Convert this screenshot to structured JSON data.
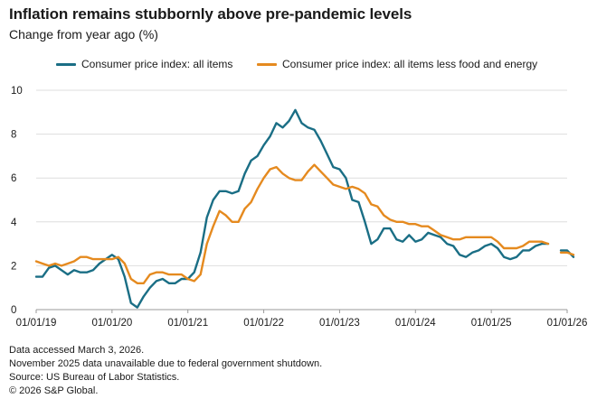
{
  "header": {
    "title": "Inflation remains stubbornly above pre-pandemic levels",
    "subtitle": "Change from year ago (%)"
  },
  "footer": {
    "lines": [
      "Data accessed March 3, 2026.",
      "November 2025 data unavailable due to federal government shutdown.",
      "Source: US Bureau of Labor Statistics.",
      "© 2026 S&P Global."
    ]
  },
  "colors": {
    "cpi": "#1a6e85",
    "core": "#e58a1f",
    "grid": "#dedede",
    "axis": "#9a9a9a"
  },
  "chart_data": {
    "type": "line",
    "title": "Inflation remains stubbornly above pre-pandemic levels",
    "ylabel": "Change from year ago (%)",
    "xlabel": "",
    "ylim": [
      0,
      10
    ],
    "yticks": [
      "0",
      "2",
      "4",
      "6",
      "8",
      "10"
    ],
    "xticks": [
      "01/01/19",
      "01/01/20",
      "01/01/21",
      "01/01/22",
      "01/01/23",
      "01/01/24",
      "01/01/25",
      "01/01/26"
    ],
    "x_start": "2019-01",
    "x_step": "monthly",
    "grid": true,
    "legend_position": "top",
    "gap_note": "November 2025 (index 82) missing",
    "series": [
      {
        "name": "Consumer price index: all items",
        "color_key": "cpi",
        "values": [
          1.5,
          1.5,
          1.9,
          2.0,
          1.8,
          1.6,
          1.8,
          1.7,
          1.7,
          1.8,
          2.1,
          2.3,
          2.5,
          2.3,
          1.5,
          0.3,
          0.1,
          0.6,
          1.0,
          1.3,
          1.4,
          1.2,
          1.2,
          1.4,
          1.4,
          1.7,
          2.6,
          4.2,
          5.0,
          5.4,
          5.4,
          5.3,
          5.4,
          6.2,
          6.8,
          7.0,
          7.5,
          7.9,
          8.5,
          8.3,
          8.6,
          9.1,
          8.5,
          8.3,
          8.2,
          7.7,
          7.1,
          6.5,
          6.4,
          6.0,
          5.0,
          4.9,
          4.0,
          3.0,
          3.2,
          3.7,
          3.7,
          3.2,
          3.1,
          3.4,
          3.1,
          3.2,
          3.5,
          3.4,
          3.3,
          3.0,
          2.9,
          2.5,
          2.4,
          2.6,
          2.7,
          2.9,
          3.0,
          2.8,
          2.4,
          2.3,
          2.4,
          2.7,
          2.7,
          2.9,
          3.0,
          3.0,
          null,
          2.7,
          2.7,
          2.4
        ]
      },
      {
        "name": "Consumer price index: all items less food and energy",
        "color_key": "core",
        "values": [
          2.2,
          2.1,
          2.0,
          2.1,
          2.0,
          2.1,
          2.2,
          2.4,
          2.4,
          2.3,
          2.3,
          2.3,
          2.3,
          2.4,
          2.1,
          1.4,
          1.2,
          1.2,
          1.6,
          1.7,
          1.7,
          1.6,
          1.6,
          1.6,
          1.4,
          1.3,
          1.6,
          3.0,
          3.8,
          4.5,
          4.3,
          4.0,
          4.0,
          4.6,
          4.9,
          5.5,
          6.0,
          6.4,
          6.5,
          6.2,
          6.0,
          5.9,
          5.9,
          6.3,
          6.6,
          6.3,
          6.0,
          5.7,
          5.6,
          5.5,
          5.6,
          5.5,
          5.3,
          4.8,
          4.7,
          4.3,
          4.1,
          4.0,
          4.0,
          3.9,
          3.9,
          3.8,
          3.8,
          3.6,
          3.4,
          3.3,
          3.2,
          3.2,
          3.3,
          3.3,
          3.3,
          3.3,
          3.3,
          3.1,
          2.8,
          2.8,
          2.8,
          2.9,
          3.1,
          3.1,
          3.1,
          3.0,
          null,
          2.6,
          2.6,
          2.5
        ]
      }
    ]
  }
}
